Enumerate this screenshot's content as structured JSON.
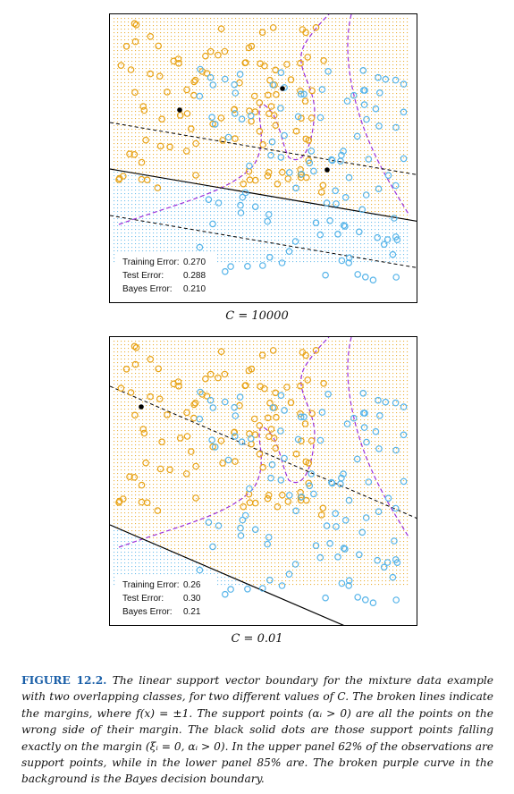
{
  "panels": [
    {
      "id": "top",
      "caption": "C = 10000",
      "errors": [
        {
          "label": "Training Error:",
          "value": "0.270"
        },
        {
          "label": "Test Error:",
          "value": "0.288"
        },
        {
          "label": "Bayes Error:",
          "value": "0.210"
        }
      ]
    },
    {
      "id": "bottom",
      "caption": "C = 0.01",
      "errors": [
        {
          "label": "Training Error:",
          "value": "0.26"
        },
        {
          "label": "Test Error:",
          "value": "0.30"
        },
        {
          "label": "Bayes Error:",
          "value": "0.21"
        }
      ]
    }
  ],
  "figure_caption": {
    "label": "FIGURE 12.2.",
    "text": "The linear support vector boundary for the mixture data example with two overlapping classes, for two different values of C. The broken lines indicate the margins, where f(x) = ±1. The support points (αᵢ > 0) are all the points on the wrong side of their margin. The black solid dots are those support points falling exactly on the margin (ξᵢ = 0, αᵢ > 0). In the upper panel 62% of the observations are support points, while in the lower panel 85% are. The broken purple curve in the background is the Bayes decision boundary."
  },
  "colors": {
    "orange": "#e8a317",
    "blue": "#56b4e9",
    "bayes": "#9b30d9"
  }
}
